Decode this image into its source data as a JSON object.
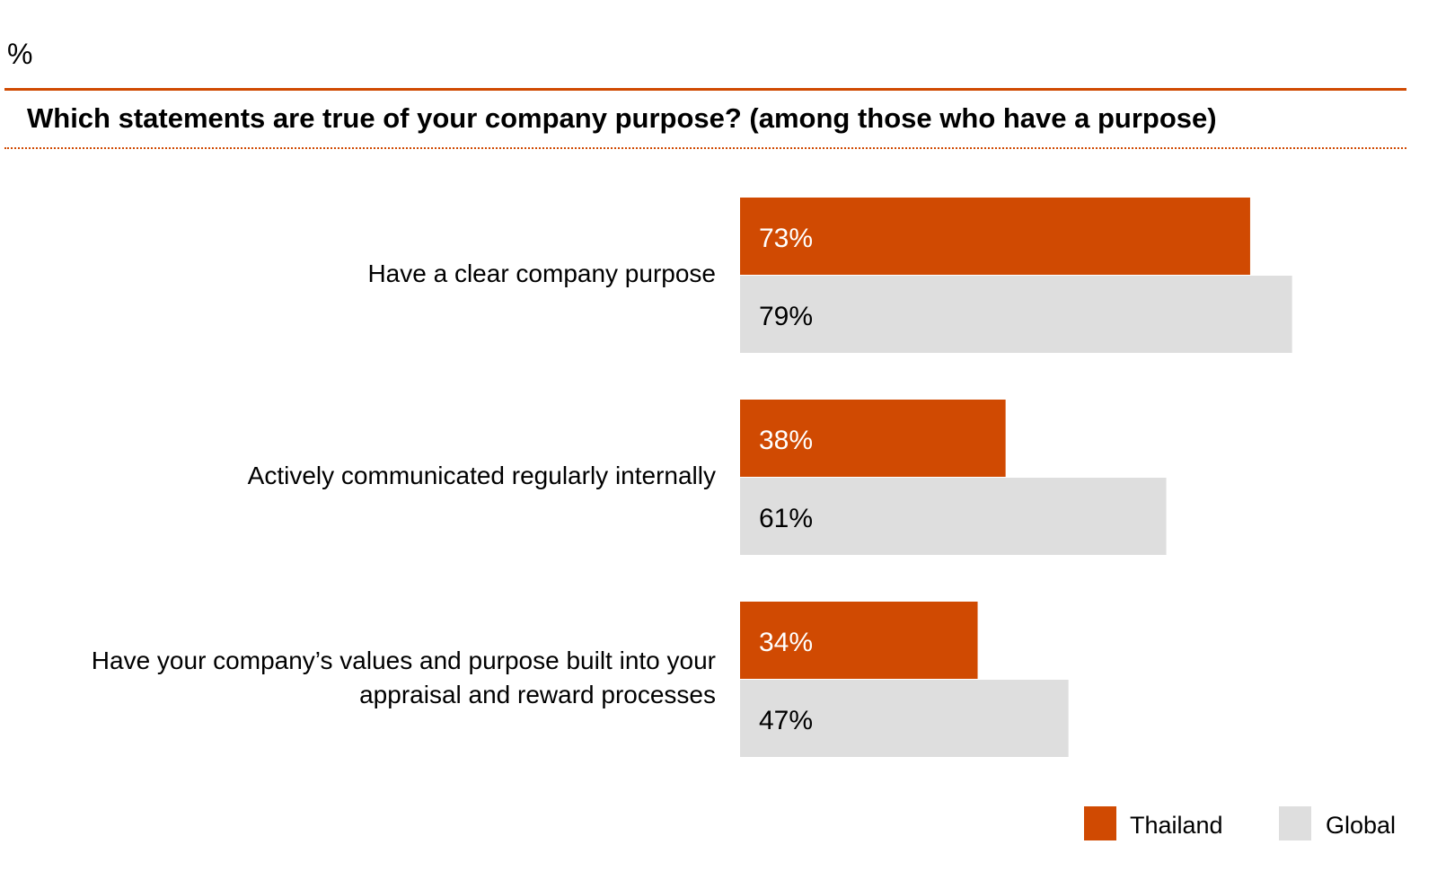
{
  "chart_data": {
    "type": "bar",
    "orientation": "horizontal",
    "unit_label": "%",
    "title": "Which statements are true of your company purpose? (among those who have a purpose)",
    "categories": [
      "Have a clear company purpose",
      "Actively communicated regularly internally",
      "Have your company’s values and purpose built into your appraisal and reward processes"
    ],
    "series": [
      {
        "name": "Thailand",
        "color": "#D04A02",
        "label_color": "#FFFFFF",
        "values": [
          73,
          38,
          34
        ]
      },
      {
        "name": "Global",
        "color": "#DEDEDE",
        "label_color": "#000000",
        "values": [
          79,
          61,
          47
        ]
      }
    ],
    "value_suffix": "%",
    "xlim": [
      0,
      100
    ],
    "grid": false,
    "legend_position": "bottom-right",
    "accent_color": "#D04A02"
  }
}
